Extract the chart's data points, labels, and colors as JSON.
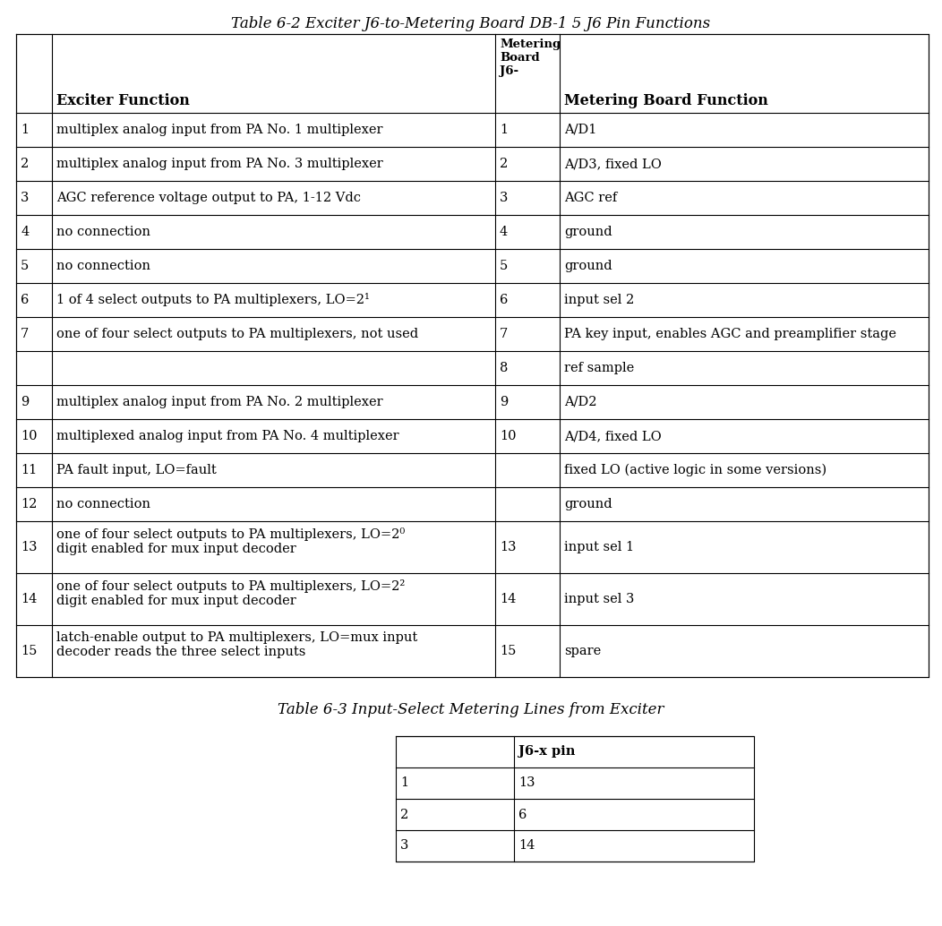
{
  "title1": "Table 6-2 Exciter J6-to-Metering Board DB-1 5 J6 Pin Functions",
  "title2": "Table 6-3 Input-Select Metering Lines from Exciter",
  "table1_header_col1": "Exciter Function",
  "table1_header_col2": "Metering\nBoard\nJ6-",
  "table1_header_col3": "Metering Board Function",
  "table1_rows": [
    [
      "1",
      "multiplex analog input from PA No. 1 multiplexer",
      "1",
      "A/D1"
    ],
    [
      "2",
      "multiplex analog input from PA No. 3 multiplexer",
      "2",
      "A/D3, fixed LO"
    ],
    [
      "3",
      "AGC reference voltage output to PA, 1-12 Vdc",
      "3",
      "AGC ref"
    ],
    [
      "4",
      "no connection",
      "4",
      "ground"
    ],
    [
      "5",
      "no connection",
      "5",
      "ground"
    ],
    [
      "6",
      "1 of 4 select outputs to PA multiplexers, LO=2¹",
      "6",
      "input sel 2"
    ],
    [
      "7",
      "one of four select outputs to PA multiplexers, not used",
      "7",
      "PA key input, enables AGC and preamplifier stage"
    ],
    [
      "",
      "",
      "8",
      "ref sample"
    ],
    [
      "9",
      "multiplex analog input from PA No. 2 multiplexer",
      "9",
      "A/D2"
    ],
    [
      "10",
      "multiplexed analog input from PA No. 4 multiplexer",
      "10",
      "A/D4, fixed LO"
    ],
    [
      "11",
      "PA fault input, LO=fault",
      "",
      "fixed LO (active logic in some versions)"
    ],
    [
      "12",
      "no connection",
      "",
      "ground"
    ],
    [
      "13",
      "one of four select outputs to PA multiplexers, LO=2⁰\ndigit enabled for mux input decoder",
      "13",
      "input sel 1"
    ],
    [
      "14",
      "one of four select outputs to PA multiplexers, LO=2²\ndigit enabled for mux input decoder",
      "14",
      "input sel 3"
    ],
    [
      "15",
      "latch-enable output to PA multiplexers, LO=mux input\ndecoder reads the three select inputs",
      "15",
      "spare"
    ]
  ],
  "table2_header": [
    "",
    "J6-x pin"
  ],
  "table2_rows": [
    [
      "1",
      "13"
    ],
    [
      "2",
      "6"
    ],
    [
      "3",
      "14"
    ]
  ],
  "bg_color": "#ffffff",
  "text_color": "#000000",
  "line_color": "#000000",
  "font_size": 10.5,
  "header_font_size": 11.5,
  "small_font_size": 9.5,
  "title_font_size": 12
}
